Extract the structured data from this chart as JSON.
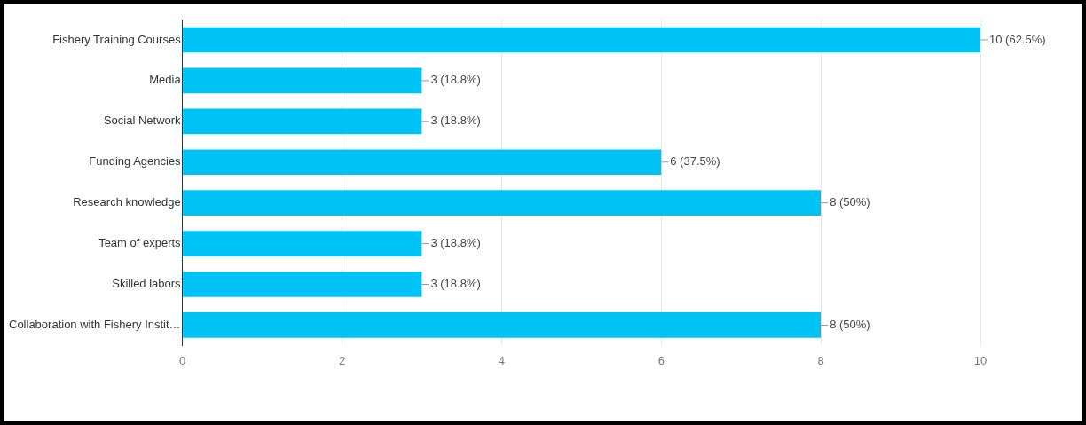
{
  "chart_data": {
    "type": "bar",
    "orientation": "horizontal",
    "categories": [
      "Fishery Training Courses",
      "Media",
      "Social Network",
      "Funding Agencies",
      "Research knowledge",
      "Team of experts",
      "Skilled labors",
      "Collaboration with Fishery Instit…"
    ],
    "values": [
      10,
      3,
      3,
      6,
      8,
      3,
      3,
      8
    ],
    "value_labels": [
      "10 (62.5%)",
      "3 (18.8%)",
      "3 (18.8%)",
      "6 (37.5%)",
      "8 (50%)",
      "3 (18.8%)",
      "3 (18.8%)",
      "8 (50%)"
    ],
    "color": "#00c3f5",
    "xlim": [
      0,
      10
    ],
    "xticks": [
      0,
      2,
      4,
      6,
      8,
      10
    ],
    "grid": "x",
    "legend": false
  }
}
